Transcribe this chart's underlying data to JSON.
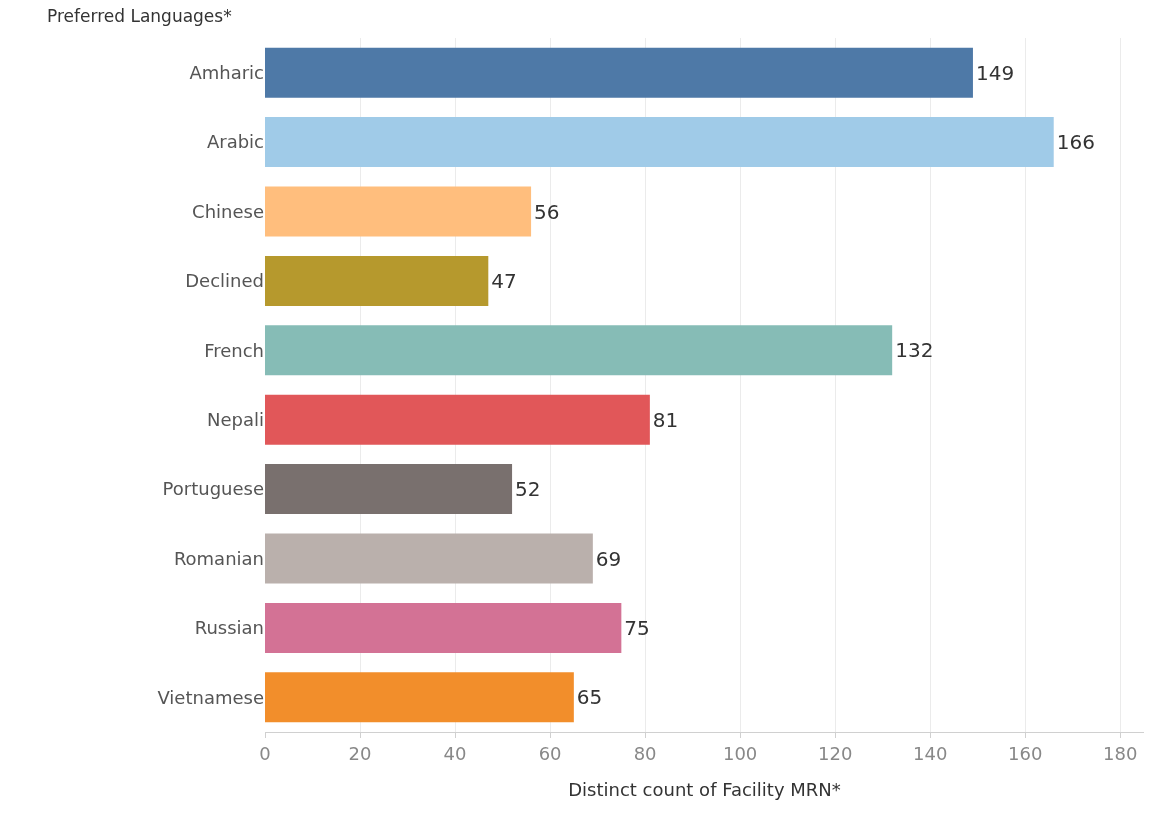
{
  "chart_data": {
    "type": "bar",
    "orientation": "horizontal",
    "ylabel": "Preferred Languages*",
    "xlabel": "Distinct count of Facility MRN*",
    "categories": [
      "Amharic",
      "Arabic",
      "Chinese",
      "Declined",
      "French",
      "Nepali",
      "Portuguese",
      "Romanian",
      "Russian",
      "Vietnamese"
    ],
    "values": [
      149,
      166,
      56,
      47,
      132,
      81,
      52,
      69,
      75,
      65
    ],
    "colors": [
      "#4e79a7",
      "#a0cbe8",
      "#ffbe7d",
      "#b6992d",
      "#86bcb6",
      "#e15759",
      "#79706e",
      "#bab0ac",
      "#d37295",
      "#f28e2b"
    ],
    "xlim": [
      0,
      185
    ],
    "xticks": [
      0,
      20,
      40,
      60,
      80,
      100,
      120,
      140,
      160,
      180
    ],
    "grid": "x",
    "data_labels": true
  }
}
